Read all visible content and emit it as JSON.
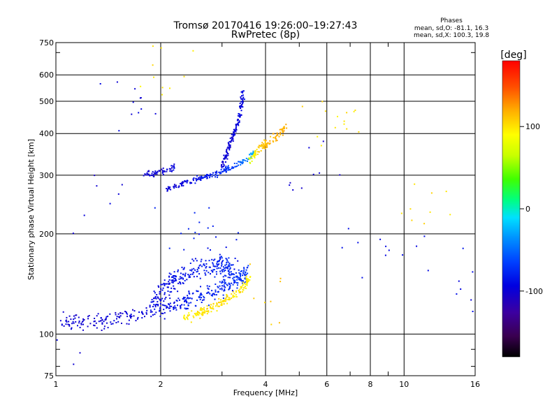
{
  "chart_data": {
    "type": "scatter",
    "title": "Tromsø 20170416 19:26:00–19:27:43",
    "subtitle": "RwPretec (8p)",
    "xlabel": "Frequency [MHz]",
    "ylabel": "Stationary phase Virtual Height [km]",
    "x_scale": "log",
    "y_scale": "log",
    "xlim": [
      1,
      16
    ],
    "ylim": [
      75,
      750
    ],
    "x_ticks": [
      1,
      2,
      4,
      6,
      8,
      10,
      16
    ],
    "x_minor_ticks": [
      3,
      5,
      7,
      9
    ],
    "y_ticks": [
      75,
      100,
      200,
      300,
      400,
      500,
      600,
      750
    ],
    "grid": true,
    "phases_box": {
      "title": "Phases",
      "line1": "mean, sd,O: -81.1, 16.3",
      "line2": "mean, sd,X: 100.3, 19.8"
    },
    "colorbar": {
      "label": "[deg]",
      "ticks": [
        100,
        0,
        -100
      ],
      "range": [
        -180,
        180
      ]
    },
    "series": [
      {
        "x": [
          1.05,
          1.14,
          1.27,
          1.43,
          1.62,
          1.84,
          2.05,
          2.25,
          2.45,
          2.68,
          2.92,
          3.15,
          3.35,
          3.55
        ],
        "y": [
          111,
          110,
          108,
          110,
          113,
          117,
          120,
          123,
          127,
          131,
          136,
          142,
          147,
          153
        ],
        "phase": [
          -100,
          -100,
          -102,
          -100,
          -98,
          -95,
          -92,
          -88,
          -82,
          -80,
          -78,
          -75,
          -72,
          -70
        ],
        "spread": 0.09,
        "count": 380
      },
      {
        "x": [
          1.9,
          2.05,
          2.2,
          2.4,
          2.6,
          2.85,
          3.05,
          3.2
        ],
        "y": [
          128,
          135,
          145,
          152,
          158,
          162,
          160,
          158
        ],
        "phase": [
          -95,
          -92,
          -90,
          -86,
          -84,
          -80,
          -78,
          -76
        ],
        "spread": 0.1,
        "count": 240
      },
      {
        "x": [
          2.3,
          2.5,
          2.7,
          2.9,
          3.1,
          3.3,
          3.5,
          3.6
        ],
        "y": [
          112,
          114,
          118,
          122,
          127,
          133,
          140,
          148
        ],
        "phase": [
          95,
          98,
          100,
          102,
          100,
          98,
          96,
          95
        ],
        "spread": 0.05,
        "count": 170
      },
      {
        "x": [
          2.08,
          2.3,
          2.5,
          2.7,
          2.9,
          3.1,
          3.3,
          3.5,
          3.7
        ],
        "y": [
          272,
          283,
          290,
          297,
          303,
          312,
          322,
          333,
          348
        ],
        "phase": [
          -100,
          -95,
          -90,
          -85,
          -78,
          -72,
          -62,
          -45,
          -25
        ],
        "spread": 0.03,
        "count": 170
      },
      {
        "x": [
          3.0,
          3.1,
          3.2,
          3.3,
          3.4,
          3.45
        ],
        "y": [
          320,
          350,
          385,
          420,
          470,
          530
        ],
        "phase": [
          -100,
          -100,
          -98,
          -95,
          -95,
          -92
        ],
        "spread": 0.05,
        "count": 150
      },
      {
        "x": [
          3.6,
          3.8,
          4.0,
          4.2,
          4.4,
          4.6
        ],
        "y": [
          330,
          355,
          370,
          385,
          400,
          420
        ],
        "phase": [
          60,
          110,
          115,
          118,
          120,
          120
        ],
        "spread": 0.05,
        "count": 110
      },
      {
        "x": [
          1.8,
          1.9,
          2.0,
          2.1,
          2.2
        ],
        "y": [
          300,
          302,
          306,
          310,
          318
        ],
        "phase": [
          -100,
          -100,
          -98,
          -96,
          -95
        ],
        "spread": 0.03,
        "count": 60
      },
      {
        "x": [
          1.0,
          1.3,
          1.6,
          2.0,
          2.5,
          3.0,
          4.0,
          5.0,
          6.5,
          8.5,
          11.0,
          14.0
        ],
        "y": [
          90,
          250,
          500,
          650,
          200,
          170,
          120,
          300,
          450,
          180,
          250,
          140
        ],
        "phase": [
          -100,
          -100,
          -95,
          100,
          -80,
          -90,
          110,
          -100,
          100,
          -90,
          100,
          -90
        ],
        "spread": 1.0,
        "count": 130
      }
    ]
  }
}
